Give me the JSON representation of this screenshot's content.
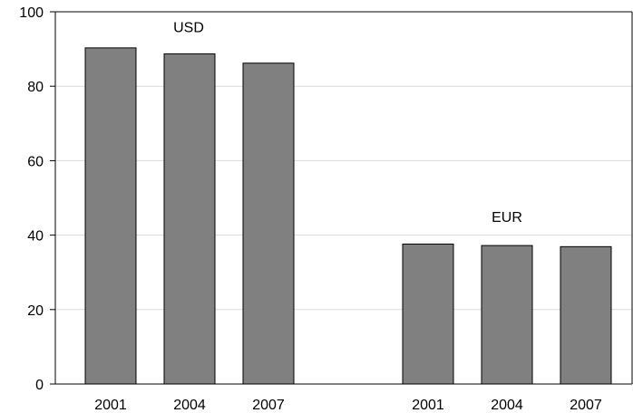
{
  "chart_data": {
    "type": "bar",
    "title": "",
    "xlabel": "",
    "ylabel": "",
    "ylim": [
      0,
      100
    ],
    "yticks": [
      0,
      20,
      40,
      60,
      80,
      100
    ],
    "grid": "horizontal",
    "bar_color": "#808080",
    "groups": [
      {
        "name": "USD",
        "categories": [
          "2001",
          "2004",
          "2007"
        ],
        "values": [
          90.3,
          88.7,
          86.2
        ]
      },
      {
        "name": "EUR",
        "categories": [
          "2001",
          "2004",
          "2007"
        ],
        "values": [
          37.6,
          37.2,
          36.9
        ]
      }
    ]
  }
}
